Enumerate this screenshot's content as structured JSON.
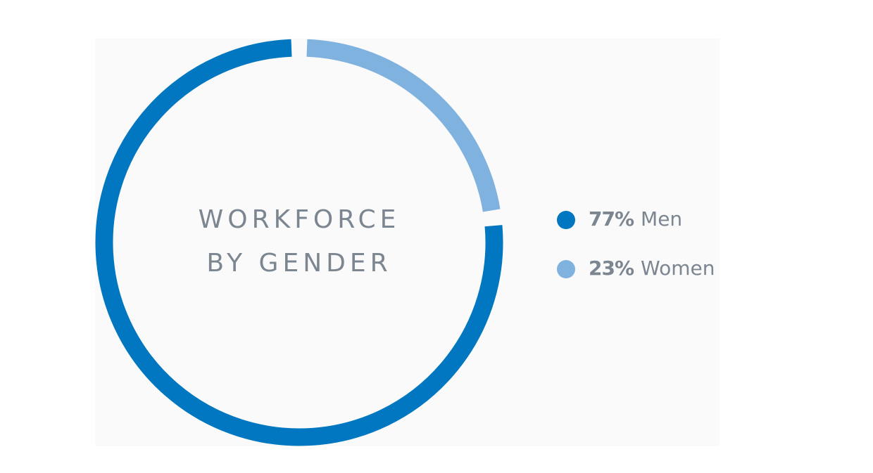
{
  "chart_data": {
    "type": "donut",
    "title": "WORKFORCE BY GENDER",
    "categories": [
      "Men",
      "Women"
    ],
    "values": [
      77,
      23
    ],
    "value_labels": [
      "77%",
      "23%"
    ],
    "colors": [
      "#0077c0",
      "#80b2e0"
    ]
  }
}
